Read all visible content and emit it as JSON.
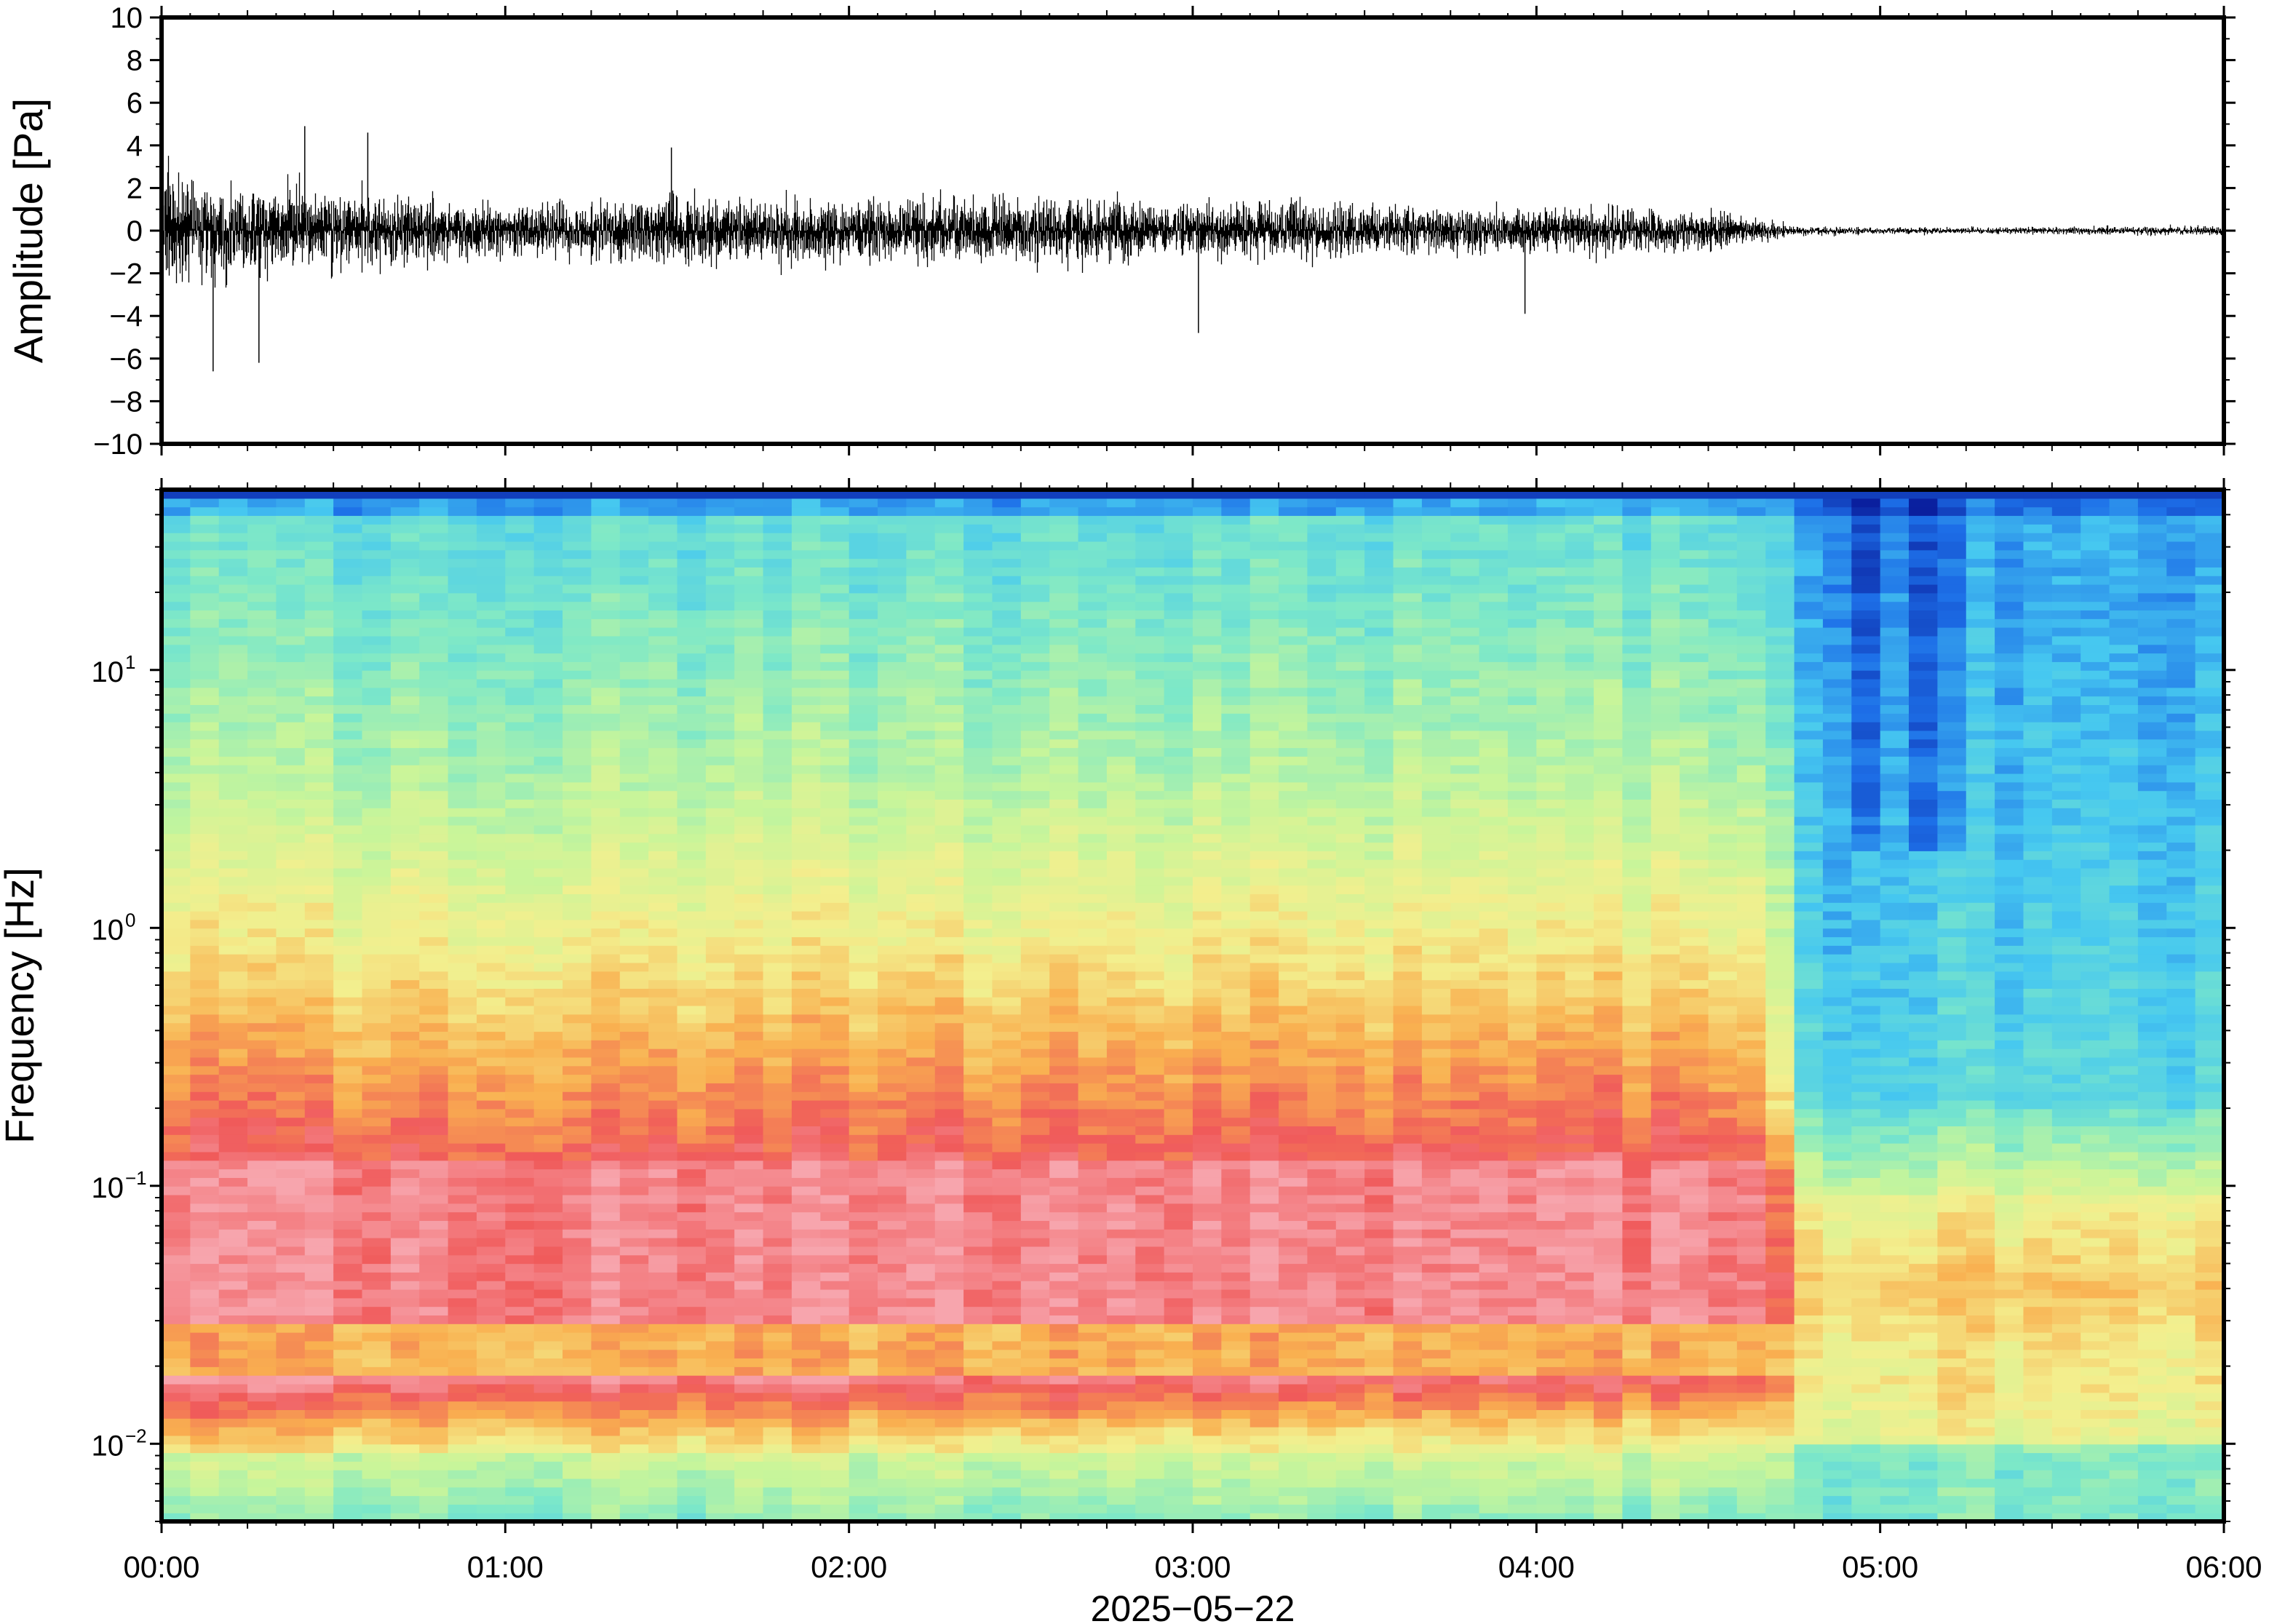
{
  "chart_data": [
    {
      "type": "line",
      "ylabel": "Amplitude [Pa]",
      "ylim": [
        -10,
        10
      ],
      "yticks": [
        -10,
        -8,
        -6,
        -4,
        -2,
        0,
        2,
        4,
        6,
        8,
        10
      ],
      "ytick_labels": [
        "−10",
        "−8",
        "−6",
        "−4",
        "−2",
        "0",
        "2",
        "4",
        "6",
        "8",
        "10"
      ],
      "xlim": [
        "00:00",
        "06:00"
      ],
      "grid": false,
      "series": [
        {
          "x": [
            "00:00",
            "00:15",
            "00:30",
            "00:45",
            "01:00",
            "01:15",
            "01:30",
            "01:45",
            "02:00",
            "02:15",
            "02:30",
            "02:45",
            "03:00",
            "03:15",
            "03:30",
            "03:45",
            "04:00",
            "04:15",
            "04:30",
            "04:40",
            "04:45",
            "05:00",
            "05:15",
            "05:30",
            "05:45",
            "06:00"
          ],
          "values": [
            3.0,
            2.4,
            2.2,
            1.9,
            1.3,
            1.5,
            1.8,
            1.7,
            1.6,
            1.8,
            1.7,
            1.8,
            1.6,
            1.5,
            1.4,
            1.3,
            1.2,
            1.2,
            1.1,
            0.6,
            0.25,
            0.18,
            0.18,
            0.2,
            0.22,
            0.25
          ],
          "value_kind": "envelope_amplitude_pa"
        }
      ],
      "peaks": [
        {
          "x": "00:09",
          "y": -6.6
        },
        {
          "x": "00:17",
          "y": -6.2
        },
        {
          "x": "00:25",
          "y": 4.9
        },
        {
          "x": "00:36",
          "y": 4.6
        },
        {
          "x": "01:29",
          "y": 3.9
        },
        {
          "x": "03:01",
          "y": -4.8
        },
        {
          "x": "03:58",
          "y": -3.9
        }
      ]
    },
    {
      "type": "heatmap",
      "ylabel": "Frequency [Hz]",
      "xlabel": "2025−05−22",
      "yscale": "log",
      "ylim": [
        0.005,
        50
      ],
      "yticks": [
        0.01,
        0.1,
        1,
        10
      ],
      "ytick_labels": [
        {
          "base": "10",
          "exp": "−2"
        },
        {
          "base": "10",
          "exp": "−1"
        },
        {
          "base": "10",
          "exp": "0"
        },
        {
          "base": "10",
          "exp": "1"
        }
      ],
      "xticks": [
        "00:00",
        "01:00",
        "02:00",
        "03:00",
        "04:00",
        "05:00",
        "06:00"
      ],
      "xlim": [
        "00:00",
        "06:00"
      ],
      "colormap": "rainbow",
      "colors": [
        "#0a1f9e",
        "#1d6fe8",
        "#46c8f0",
        "#7de8c8",
        "#c8f59a",
        "#f3ef8e",
        "#f9b050",
        "#f05a5a",
        "#f7a5ad"
      ],
      "time_columns": 72,
      "regime_change": "04:40"
    }
  ]
}
